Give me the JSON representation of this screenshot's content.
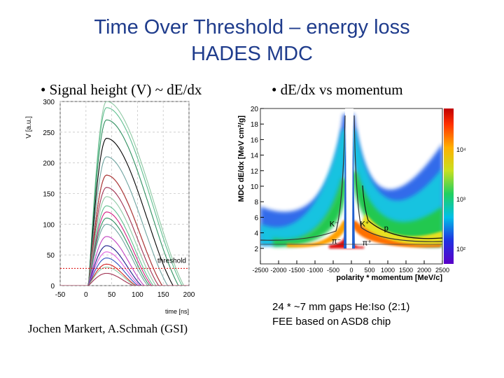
{
  "slide": {
    "title_line1": "Time Over Threshold – energy loss",
    "title_line2": "HADES MDC",
    "bullet_left": "• Signal height (V) ~ dE/dx",
    "bullet_right": "• dE/dx vs momentum",
    "credit": "Jochen Markert, A.Schmah (GSI)",
    "note_line1": "24  * ~7 mm gaps He:Iso (2:1)",
    "note_line2": "FEE based on ASD8 chip"
  },
  "colors": {
    "title": "#1f3c8c",
    "threshold": "#e02020"
  },
  "chart_data": [
    {
      "type": "line",
      "ylabel": "V [a.u.]",
      "xlabel": "time [ns]",
      "xlim": [
        -50,
        200
      ],
      "ylim": [
        0,
        300
      ],
      "xticks": [
        "-50",
        "0",
        "50",
        "100",
        "150",
        "200"
      ],
      "yticks": [
        "0",
        "50",
        "100",
        "150",
        "200",
        "250",
        "300"
      ],
      "threshold": {
        "label": "threshold",
        "value": 28
      },
      "peak_time": 40,
      "pulse_start": 5,
      "series_peaks": [
        300,
        290,
        270,
        240,
        210,
        180,
        180,
        160,
        145,
        130,
        120,
        110,
        100,
        80,
        65,
        55,
        45,
        35,
        30,
        20
      ],
      "series_colors": [
        "#8fc9a4",
        "#5fbf8f",
        "#2f8f5f",
        "#000000",
        "#6fa4a0",
        "#1a1a1a",
        "#c04040",
        "#a03050",
        "#8fc9a4",
        "#5fbf8f",
        "#d02080",
        "#2f8f5f",
        "#6fa4a0",
        "#c040c0",
        "#1a1a8a",
        "#e060e0",
        "#3050c0",
        "#d02020",
        "#8fc9a4",
        "#a03050"
      ]
    },
    {
      "type": "heatmap",
      "ylabel": "MDC dE/dx   [MeV cm²/g]",
      "xlabel": "polarity * momentum   [MeV/c]",
      "xlim": [
        -2500,
        2500
      ],
      "ylim": [
        0,
        20
      ],
      "xticks": [
        "-2500",
        "-2000",
        "-1500",
        "-1000",
        "-500",
        "0",
        "500",
        "1000",
        "1500",
        "2000",
        "2500"
      ],
      "yticks": [
        "2",
        "4",
        "6",
        "8",
        "10",
        "12",
        "14",
        "16",
        "18",
        "20"
      ],
      "colorbar_ticks": [
        "10⁴",
        "10³",
        "10²"
      ],
      "particle_labels": [
        "K⁻",
        "π⁻",
        "K⁺",
        "p",
        "π⁺"
      ]
    }
  ]
}
